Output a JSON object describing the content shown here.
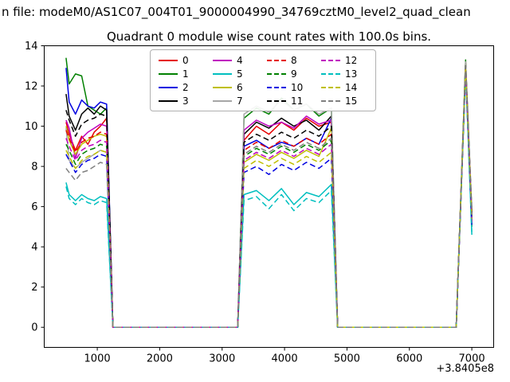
{
  "window": {
    "suptitle": "n file: modeM0/AS1C07_004T01_9000004990_34769cztM0_level2_quad_clean"
  },
  "chart_data": {
    "type": "line",
    "title": "Quadrant 0 module wise count rates with 100.0s bins.",
    "xlabel": "",
    "ylabel": "",
    "x_offset_label": "+3.8405e8",
    "xlim": [
      150,
      7350
    ],
    "ylim": [
      -1,
      14
    ],
    "x_ticks": [
      1000,
      2000,
      3000,
      4000,
      5000,
      6000,
      7000
    ],
    "y_ticks": [
      0,
      2,
      4,
      6,
      8,
      10,
      12,
      14
    ],
    "grid": false,
    "legend_position": "upper center",
    "legend_columns": 4,
    "x": [
      500,
      550,
      650,
      750,
      850,
      950,
      1050,
      1150,
      1250,
      3250,
      3350,
      3550,
      3750,
      3950,
      4150,
      4350,
      4550,
      4750,
      4850,
      6750,
      6900,
      7000
    ],
    "series": [
      {
        "name": "0",
        "color": "#e50000",
        "dashed": false,
        "values": [
          10.2,
          9.6,
          8.8,
          9.5,
          9.1,
          9.7,
          10.0,
          10.4,
          0,
          0,
          9.3,
          10.0,
          9.6,
          10.2,
          9.8,
          10.4,
          10.0,
          10.2,
          0,
          0,
          13.2,
          5.6
        ]
      },
      {
        "name": "1",
        "color": "#008000",
        "dashed": false,
        "values": [
          13.4,
          12.1,
          12.6,
          12.5,
          11.0,
          10.8,
          10.6,
          10.9,
          0,
          0,
          10.4,
          10.9,
          10.6,
          11.4,
          10.8,
          11.1,
          10.5,
          10.9,
          0,
          0,
          13.3,
          5.0
        ]
      },
      {
        "name": "2",
        "color": "#0000e0",
        "dashed": false,
        "values": [
          12.9,
          11.2,
          10.6,
          11.3,
          11.0,
          10.9,
          11.2,
          11.1,
          0,
          0,
          9.0,
          9.3,
          8.9,
          9.2,
          9.0,
          9.4,
          9.1,
          10.4,
          0,
          0,
          13.0,
          5.4
        ]
      },
      {
        "name": "3",
        "color": "#000000",
        "dashed": false,
        "values": [
          11.6,
          10.5,
          9.8,
          10.6,
          10.9,
          10.6,
          11.0,
          10.8,
          0,
          0,
          9.6,
          10.2,
          9.9,
          10.4,
          10.0,
          10.3,
          9.8,
          10.5,
          0,
          0,
          13.1,
          5.8
        ]
      },
      {
        "name": "4",
        "color": "#bf00bf",
        "dashed": false,
        "values": [
          10.3,
          9.9,
          8.4,
          9.4,
          9.7,
          9.9,
          10.1,
          10.0,
          0,
          0,
          9.8,
          10.3,
          10.0,
          10.2,
          9.9,
          10.5,
          10.1,
          10.3,
          0,
          0,
          12.9,
          5.7
        ]
      },
      {
        "name": "5",
        "color": "#00bfbf",
        "dashed": false,
        "values": [
          7.2,
          6.6,
          6.3,
          6.6,
          6.4,
          6.3,
          6.5,
          6.4,
          0,
          0,
          6.6,
          6.8,
          6.3,
          6.9,
          6.1,
          6.7,
          6.5,
          7.1,
          0,
          0,
          12.8,
          4.6
        ]
      },
      {
        "name": "6",
        "color": "#bfbf00",
        "dashed": false,
        "values": [
          10.0,
          9.3,
          8.6,
          9.1,
          9.3,
          9.5,
          9.6,
          9.5,
          0,
          0,
          8.2,
          8.6,
          8.3,
          8.7,
          8.4,
          8.8,
          8.5,
          9.9,
          0,
          0,
          13.0,
          5.5
        ]
      },
      {
        "name": "7",
        "color": "#a6a6a6",
        "dashed": false,
        "values": [
          9.9,
          8.3,
          7.9,
          8.2,
          8.4,
          8.6,
          8.8,
          8.7,
          0,
          0,
          10.6,
          11.0,
          10.7,
          11.3,
          10.8,
          11.1,
          10.6,
          10.9,
          0,
          0,
          13.2,
          5.9
        ]
      },
      {
        "name": "8",
        "color": "#e50000",
        "dashed": true,
        "values": [
          9.8,
          9.4,
          8.7,
          9.2,
          9.4,
          9.5,
          9.7,
          9.6,
          0,
          0,
          8.8,
          9.2,
          8.9,
          9.3,
          9.0,
          9.4,
          9.1,
          9.6,
          0,
          0,
          12.9,
          5.3
        ]
      },
      {
        "name": "9",
        "color": "#008000",
        "dashed": true,
        "values": [
          9.1,
          8.8,
          8.1,
          8.6,
          8.8,
          8.9,
          9.1,
          9.0,
          0,
          0,
          8.5,
          8.9,
          8.6,
          9.0,
          8.7,
          9.1,
          8.8,
          9.3,
          0,
          0,
          12.8,
          5.2
        ]
      },
      {
        "name": "10",
        "color": "#0000e0",
        "dashed": true,
        "values": [
          8.6,
          8.3,
          7.7,
          8.1,
          8.3,
          8.4,
          8.6,
          8.5,
          0,
          0,
          7.7,
          8.0,
          7.6,
          8.1,
          7.8,
          8.2,
          7.9,
          8.4,
          0,
          0,
          12.7,
          5.1
        ]
      },
      {
        "name": "11",
        "color": "#000000",
        "dashed": true,
        "values": [
          10.8,
          10.3,
          9.5,
          10.1,
          10.3,
          10.4,
          10.6,
          10.5,
          0,
          0,
          9.2,
          9.6,
          9.3,
          9.7,
          9.4,
          9.8,
          9.5,
          10.0,
          0,
          0,
          13.0,
          5.7
        ]
      },
      {
        "name": "12",
        "color": "#bf00bf",
        "dashed": true,
        "values": [
          9.4,
          9.0,
          8.3,
          8.8,
          9.0,
          9.1,
          9.3,
          9.2,
          0,
          0,
          8.3,
          8.7,
          8.4,
          8.8,
          8.5,
          8.9,
          8.6,
          9.1,
          0,
          0,
          12.8,
          5.2
        ]
      },
      {
        "name": "13",
        "color": "#00bfbf",
        "dashed": true,
        "values": [
          7.0,
          6.4,
          6.1,
          6.4,
          6.2,
          6.1,
          6.3,
          6.2,
          0,
          0,
          6.3,
          6.5,
          5.9,
          6.6,
          5.8,
          6.4,
          6.2,
          6.8,
          0,
          0,
          12.7,
          4.7
        ]
      },
      {
        "name": "14",
        "color": "#bfbf00",
        "dashed": true,
        "values": [
          8.8,
          8.5,
          7.9,
          8.3,
          8.5,
          8.6,
          8.8,
          8.7,
          0,
          0,
          7.9,
          8.3,
          8.0,
          8.4,
          8.1,
          8.5,
          8.2,
          8.7,
          0,
          0,
          12.9,
          5.4
        ]
      },
      {
        "name": "15",
        "color": "#808080",
        "dashed": true,
        "values": [
          7.9,
          7.7,
          7.3,
          7.7,
          7.8,
          8.0,
          8.2,
          8.1,
          0,
          0,
          8.6,
          9.0,
          8.7,
          9.1,
          8.8,
          9.2,
          8.9,
          9.4,
          0,
          0,
          13.0,
          5.6
        ]
      }
    ]
  }
}
